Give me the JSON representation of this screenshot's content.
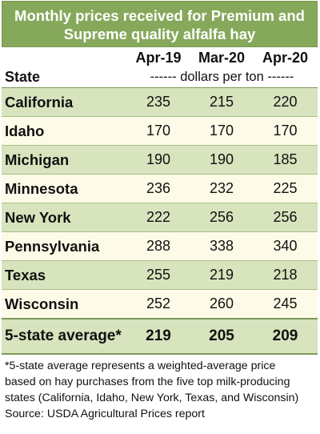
{
  "chart_data": {
    "type": "table",
    "title": "Monthly prices received for Premium and Supreme quality alfalfa hay",
    "title_lines": [
      "Monthly prices received for Premium and",
      "Supreme quality alfalfa hay"
    ],
    "row_header": "State",
    "unit_label": "------ dollars per ton ------",
    "columns": [
      "Apr-19",
      "Mar-20",
      "Apr-20"
    ],
    "rows": [
      {
        "state": "California",
        "values": [
          235,
          215,
          220
        ]
      },
      {
        "state": "Idaho",
        "values": [
          170,
          170,
          170
        ]
      },
      {
        "state": "Michigan",
        "values": [
          190,
          190,
          185
        ]
      },
      {
        "state": "Minnesota",
        "values": [
          236,
          232,
          225
        ]
      },
      {
        "state": "New York",
        "values": [
          222,
          256,
          256
        ]
      },
      {
        "state": "Pennsylvania",
        "values": [
          288,
          338,
          340
        ]
      },
      {
        "state": "Texas",
        "values": [
          255,
          219,
          218
        ]
      },
      {
        "state": "Wisconsin",
        "values": [
          252,
          260,
          245
        ]
      }
    ],
    "average": {
      "state": "5-state average*",
      "values": [
        219,
        205,
        209
      ]
    },
    "footnote_lines": [
      "*5-state average represents  a weighted-average price",
      "based on hay purchases from the five top milk-producing",
      "states (California, Idaho, New York, Texas, and Wisconsin)",
      "Source: USDA Agricultural Prices report"
    ],
    "colors": {
      "header": "#86a85b",
      "band": "#d7e4bd",
      "alt": "#fdfbe7"
    }
  }
}
